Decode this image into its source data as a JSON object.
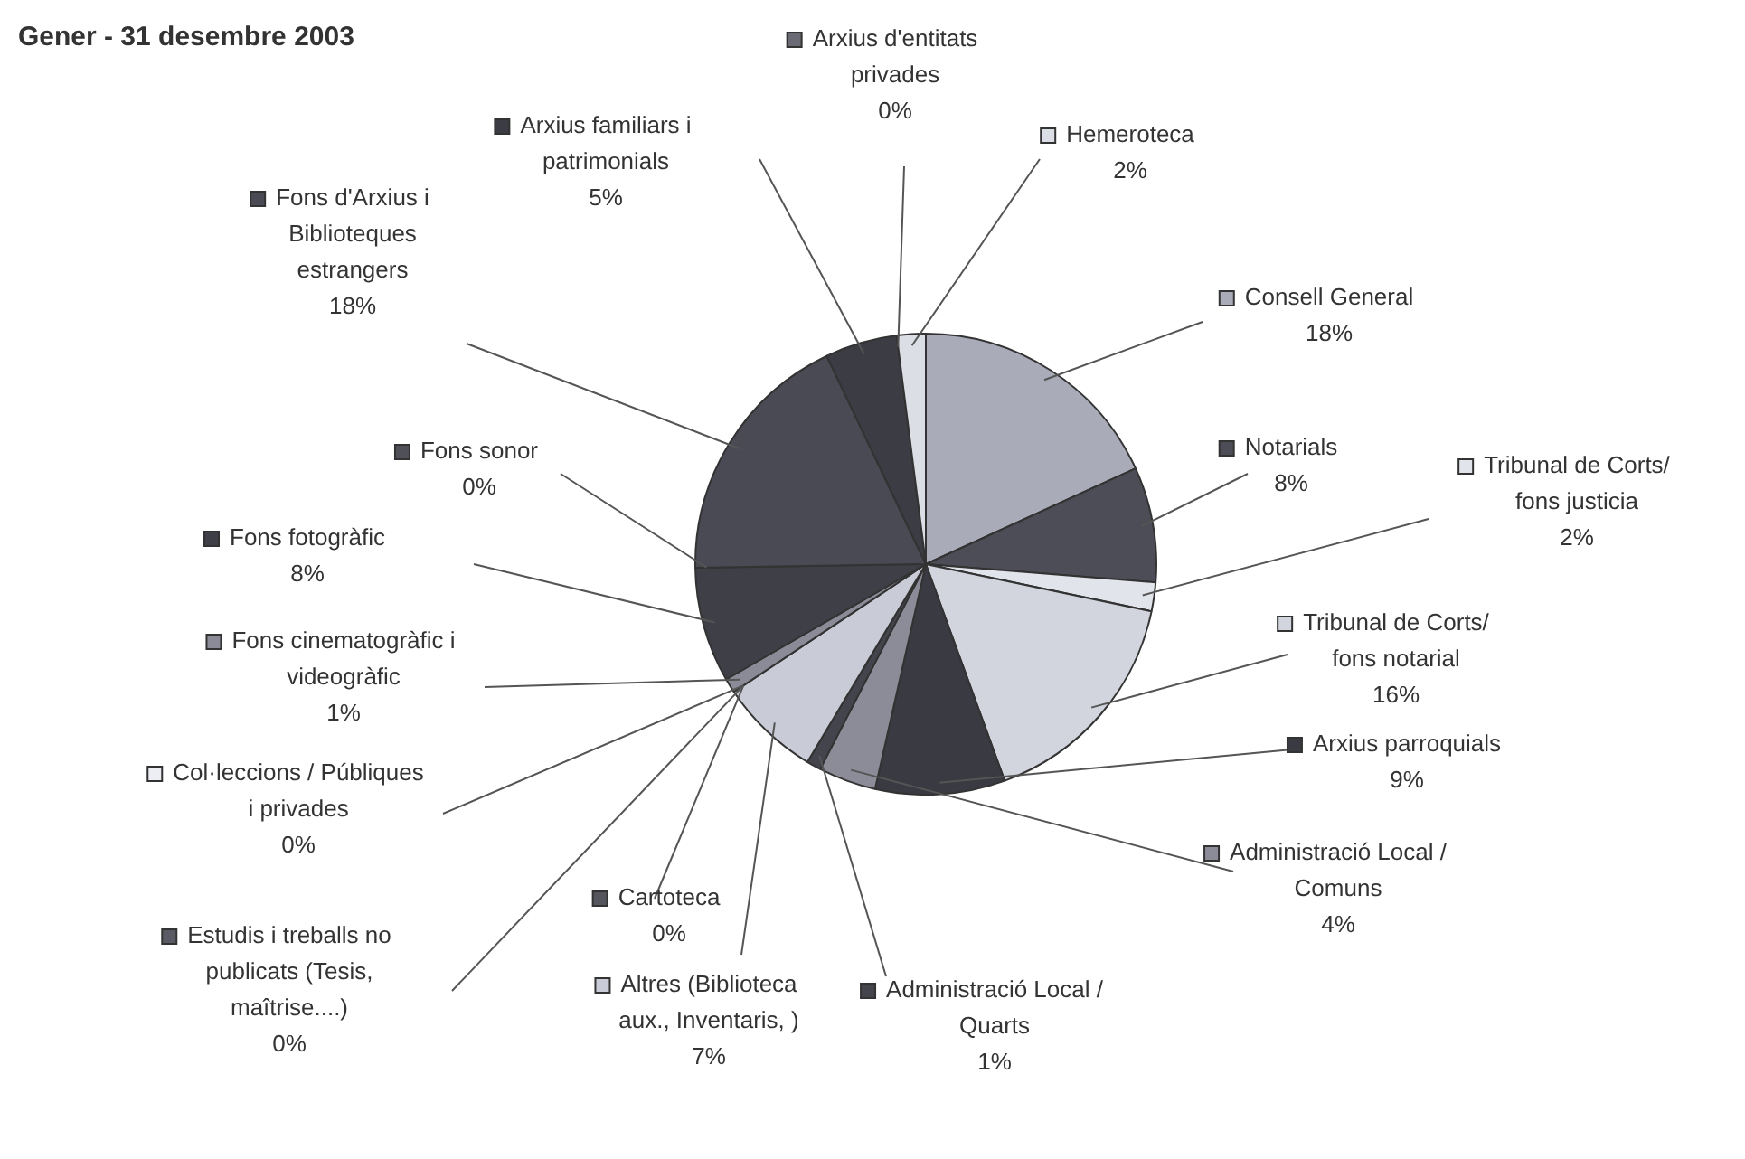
{
  "chart_data": {
    "type": "pie",
    "title": "Gener - 31 desembre 2003",
    "categories": [
      "Consell General",
      "Notarials",
      "Tribunal de Corts/ fons justicia",
      "Tribunal de Corts/ fons notarial",
      "Arxius parroquials",
      "Administració Local / Comuns",
      "Administració Local / Quarts",
      "Altres (Biblioteca aux., Inventaris, )",
      "Cartoteca",
      "Estudis i treballs no publicats (Tesis, maîtrise....)",
      "Col·leccions / Públiques i privades",
      "Fons cinematogràfic i videogràfic",
      "Fons fotogràfic",
      "Fons sonor",
      "Fons d'Arxius i Biblioteques estrangers",
      "Arxius familiars i patrimonials",
      "Arxius d'entitats privades",
      "Hemeroteca"
    ],
    "values": [
      18,
      8,
      2,
      16,
      9,
      4,
      1,
      7,
      0,
      0,
      0,
      1,
      8,
      0,
      18,
      5,
      0,
      2
    ],
    "value_labels": [
      "18%",
      "8%",
      "2%",
      "16%",
      "9%",
      "4%",
      "1%",
      "7%",
      "0%",
      "0%",
      "0%",
      "1%",
      "8%",
      "0%",
      "18%",
      "5%",
      "0%",
      "2%"
    ],
    "colors": [
      "#a9abb9",
      "#4d4d57",
      "#e2e4ec",
      "#d2d4de",
      "#3a3a42",
      "#8b8c98",
      "#44444c",
      "#c9cbd6",
      "#55555e",
      "#5a5a64",
      "#eceef4",
      "#8a8b97",
      "#3f3f48",
      "#505059",
      "#4a4a54",
      "#3c3c45",
      "#6a6a74",
      "#dcdee6"
    ],
    "legend": "right"
  }
}
